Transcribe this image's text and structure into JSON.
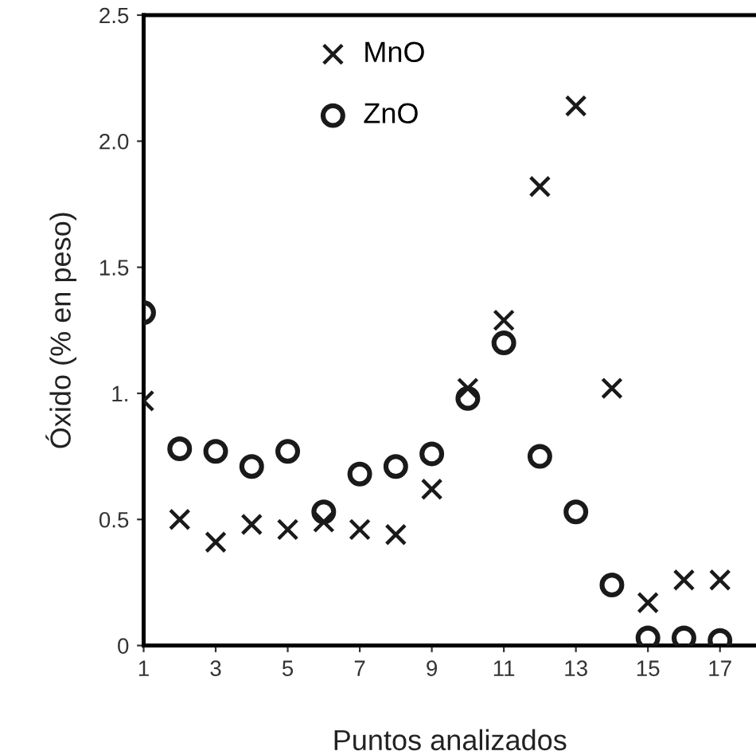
{
  "chart_data": {
    "type": "scatter",
    "xlabel": "Puntos analizados",
    "ylabel": "Óxido (% en peso)",
    "x": [
      1,
      2,
      3,
      4,
      5,
      6,
      7,
      8,
      9,
      10,
      11,
      12,
      13,
      14,
      15,
      16,
      17
    ],
    "series": [
      {
        "name": "MnO",
        "color": "#1a1a1a",
        "marker": "cross",
        "values": [
          0.97,
          0.5,
          0.41,
          0.48,
          0.46,
          0.49,
          0.46,
          0.44,
          0.62,
          1.02,
          1.29,
          1.82,
          2.14,
          1.02,
          0.17,
          0.26,
          0.26
        ]
      },
      {
        "name": "ZnO",
        "color": "#1a1a1a",
        "marker": "circle",
        "values": [
          1.32,
          0.78,
          0.77,
          0.71,
          0.77,
          0.53,
          0.68,
          0.71,
          0.76,
          0.98,
          1.2,
          0.75,
          0.53,
          0.24,
          0.03,
          0.03,
          0.02
        ]
      }
    ],
    "xlim": [
      1,
      18
    ],
    "xticks": [
      1,
      3,
      5,
      7,
      9,
      11,
      13,
      15,
      17
    ],
    "ylim": [
      0,
      2.5
    ],
    "yticks": [
      0,
      0.5,
      {
        "value": 1,
        "label": "1."
      },
      1.5,
      {
        "value": 2,
        "label": "2.0"
      },
      2.5
    ],
    "grid": false,
    "legend": "top left"
  }
}
